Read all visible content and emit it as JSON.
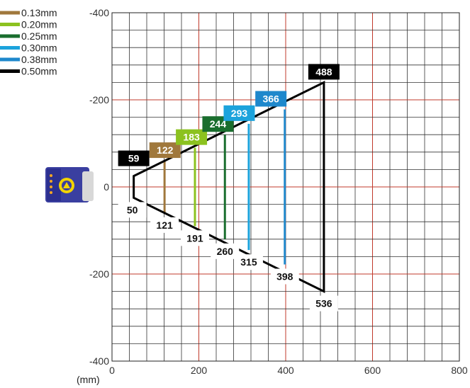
{
  "chart_data": {
    "type": "line",
    "title": "",
    "xlabel": "(mm)",
    "ylabel": "",
    "xlim": [
      0,
      800
    ],
    "ylim": [
      -400,
      400
    ],
    "x_ticks": [
      "0",
      "200",
      "400",
      "600",
      "800"
    ],
    "y_ticks": [
      "-400",
      "-200",
      "0",
      "-200",
      "-400"
    ],
    "grid": true,
    "legend_position": "top-left",
    "series": [
      {
        "name": "0.13mm",
        "color": "#a0783c",
        "near": 121,
        "far": 122,
        "half_width": 60
      },
      {
        "name": "0.20mm",
        "color": "#8cc21f",
        "near": 191,
        "far": 183,
        "half_width": 90
      },
      {
        "name": "0.25mm",
        "color": "#1a6e2e",
        "near": 260,
        "far": 244,
        "half_width": 120
      },
      {
        "name": "0.30mm",
        "color": "#1ca3dc",
        "near": 315,
        "far": 293,
        "half_width": 145
      },
      {
        "name": "0.38mm",
        "color": "#1e88cc",
        "near": 398,
        "far": 366,
        "half_width": 178
      },
      {
        "name": "0.50mm",
        "color": "#000000",
        "near": 50,
        "far": 488,
        "half_width_near": 25,
        "half_width_far": 240,
        "far_bottom_label": 536
      }
    ]
  }
}
